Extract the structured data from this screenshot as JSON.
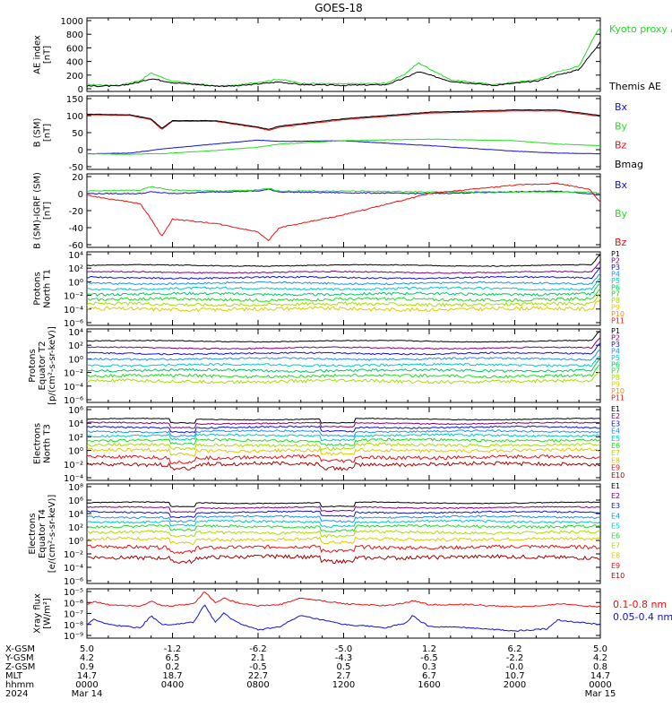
{
  "title": "GOES-18",
  "colors": {
    "black": "#000000",
    "green": "#22dd22",
    "blue": "#1010dd",
    "red": "#ee1010",
    "darkred": "#aa0000"
  },
  "chart_data": [
    {
      "type": "line",
      "panel": "AE index",
      "ylabel": [
        "AE index",
        "[nT]"
      ],
      "ytick_labels": [
        "1000",
        "800",
        "600",
        "400",
        "200",
        "0"
      ],
      "ylim": [
        0,
        1000
      ],
      "x_hours": [
        0,
        1.5,
        2.5,
        3.0,
        4.0,
        6.0,
        7.0,
        9.0,
        10.0,
        12.0,
        14.0,
        14.8,
        15.5,
        17.0,
        19.0,
        21.0,
        22.0,
        23.0,
        23.8,
        24.0
      ],
      "series": [
        {
          "name": "Kyoto proxy AE",
          "color": "#22dd22",
          "values": [
            60,
            50,
            120,
            230,
            110,
            40,
            50,
            140,
            80,
            70,
            80,
            200,
            380,
            130,
            60,
            130,
            250,
            330,
            820,
            900
          ]
        },
        {
          "name": "Themis AE",
          "color": "#000000",
          "values": [
            40,
            40,
            100,
            150,
            90,
            40,
            40,
            100,
            60,
            50,
            60,
            150,
            250,
            110,
            50,
            110,
            200,
            280,
            600,
            700
          ]
        }
      ]
    },
    {
      "type": "line",
      "panel": "B (SM)",
      "ylabel": [
        "B (SM)",
        "[nT]"
      ],
      "ytick_labels": [
        "150",
        "100",
        "50",
        "0",
        "-50"
      ],
      "ylim": [
        -60,
        150
      ],
      "x_hours": [
        0,
        2.0,
        3.0,
        3.5,
        4.0,
        6.0,
        8.0,
        8.5,
        9.0,
        12.0,
        16.0,
        20.0,
        22.0,
        24.0
      ],
      "series": [
        {
          "name": "Bx",
          "color": "#1010dd",
          "values": [
            -20,
            -18,
            -10,
            -5,
            -2,
            10,
            22,
            20,
            18,
            20,
            5,
            -12,
            -18,
            -20
          ]
        },
        {
          "name": "By",
          "color": "#22dd22",
          "values": [
            -20,
            -22,
            -20,
            -20,
            -18,
            -10,
            0,
            5,
            10,
            20,
            25,
            20,
            10,
            5
          ]
        },
        {
          "name": "Bz",
          "color": "#ee1010",
          "values": [
            100,
            98,
            85,
            55,
            80,
            80,
            60,
            52,
            62,
            85,
            105,
            112,
            112,
            95
          ]
        },
        {
          "name": "Bmag",
          "color": "#000000",
          "values": [
            102,
            100,
            88,
            58,
            82,
            82,
            62,
            55,
            65,
            88,
            108,
            115,
            115,
            98
          ]
        }
      ]
    },
    {
      "type": "line",
      "panel": "B (SM)-IGRF (SM)",
      "ylabel": [
        "B (SM)-IGRF (SM)",
        "[nT]"
      ],
      "ytick_labels": [
        "20",
        "0",
        "-20",
        "-40",
        "-60"
      ],
      "ylim": [
        -60,
        20
      ],
      "x_hours": [
        0,
        2.5,
        3.0,
        3.5,
        4.0,
        6.0,
        8.0,
        8.5,
        9.0,
        12.0,
        16.0,
        20.0,
        22.0,
        23.5,
        24.0
      ],
      "series": [
        {
          "name": "Bx",
          "color": "#1010dd",
          "values": [
            0,
            0,
            2,
            1,
            0,
            2,
            3,
            5,
            2,
            1,
            0,
            2,
            3,
            0,
            -2
          ]
        },
        {
          "name": "By",
          "color": "#22dd22",
          "values": [
            3,
            4,
            8,
            6,
            4,
            3,
            4,
            6,
            3,
            3,
            2,
            2,
            2,
            2,
            0
          ]
        },
        {
          "name": "Bz",
          "color": "#ee1010",
          "values": [
            -2,
            -12,
            -30,
            -50,
            -30,
            -35,
            -45,
            -55,
            -40,
            -25,
            0,
            10,
            12,
            5,
            -10
          ]
        }
      ]
    },
    {
      "type": "line",
      "panel": "Protons North T1",
      "ylabel": [
        "Protons",
        "North T1"
      ],
      "ytick_labels": [
        "10⁴",
        "10²",
        "10⁰",
        "10⁻²",
        "10⁻⁴",
        "10⁻⁶"
      ],
      "ylim_log10": [
        -6,
        4
      ],
      "series": [
        {
          "name": "P1",
          "color": "#000000",
          "log10": 2.4
        },
        {
          "name": "P2",
          "color": "#800080",
          "log10": 1.4
        },
        {
          "name": "P3",
          "color": "#1010dd",
          "log10": 0.6
        },
        {
          "name": "P4",
          "color": "#1e8fff",
          "log10": -0.2
        },
        {
          "name": "P5",
          "color": "#00c8c8",
          "log10": -1.0
        },
        {
          "name": "P6",
          "color": "#00c864",
          "log10": -1.8
        },
        {
          "name": "P7",
          "color": "#22dd22",
          "log10": -2.6
        },
        {
          "name": "P8",
          "color": "#aadd00",
          "log10": -3.3
        },
        {
          "name": "P9",
          "color": "#ddcc00",
          "log10": -4.0
        },
        {
          "name": "P10",
          "color": "#ff8800",
          "log10": null
        },
        {
          "name": "P11",
          "color": "#ee1010",
          "log10": null
        }
      ]
    },
    {
      "type": "line",
      "panel": "Protons Equator T2",
      "ylabel": [
        "Protons",
        "Equator T2",
        "[p/(cm²-s-sr-keV)]"
      ],
      "ytick_labels": [
        "10⁴",
        "10²",
        "10⁰",
        "10⁻²",
        "10⁻⁴",
        "10⁻⁶"
      ],
      "ylim_log10": [
        -6,
        4
      ],
      "series": [
        {
          "name": "P1",
          "color": "#000000",
          "log10": 2.6
        },
        {
          "name": "P2",
          "color": "#800080",
          "log10": 1.6
        },
        {
          "name": "P3",
          "color": "#1010dd",
          "log10": 0.8
        },
        {
          "name": "P4",
          "color": "#1e8fff",
          "log10": 0.0
        },
        {
          "name": "P5",
          "color": "#00c8c8",
          "log10": -0.9
        },
        {
          "name": "P6",
          "color": "#00c864",
          "log10": -1.7
        },
        {
          "name": "P7",
          "color": "#22dd22",
          "log10": -2.5
        },
        {
          "name": "P8",
          "color": "#aadd00",
          "log10": -3.3
        },
        {
          "name": "P9",
          "color": "#ddcc00",
          "log10": null
        },
        {
          "name": "P10",
          "color": "#ff8800",
          "log10": null
        },
        {
          "name": "P11",
          "color": "#ee1010",
          "log10": null
        }
      ]
    },
    {
      "type": "line",
      "panel": "Electrons North T3",
      "ylabel": [
        "Electrons",
        "North T3"
      ],
      "ytick_labels": [
        "10⁶",
        "10⁴",
        "10²",
        "10⁰",
        "10⁻²",
        "10⁻⁴"
      ],
      "ylim_log10": [
        -4,
        6
      ],
      "series": [
        {
          "name": "E1",
          "color": "#000000",
          "log10": 4.6
        },
        {
          "name": "E2",
          "color": "#800080",
          "log10": 4.0
        },
        {
          "name": "E3",
          "color": "#1010dd",
          "log10": 3.4
        },
        {
          "name": "E4",
          "color": "#1e8fff",
          "log10": 2.8
        },
        {
          "name": "E5",
          "color": "#00c8c8",
          "log10": 2.2
        },
        {
          "name": "E6",
          "color": "#22dd22",
          "log10": 1.5
        },
        {
          "name": "E7",
          "color": "#aadd00",
          "log10": 0.8
        },
        {
          "name": "E8",
          "color": "#ddcc00",
          "log10": 0.0
        },
        {
          "name": "E9",
          "color": "#ee1010",
          "log10": -1.0
        },
        {
          "name": "E10",
          "color": "#aa0000",
          "log10": -2.0
        }
      ]
    },
    {
      "type": "line",
      "panel": "Electrons Equator T4",
      "ylabel": [
        "Electrons",
        "Equator T4",
        "[e/(cm²-s-sr-keV)]"
      ],
      "ytick_labels": [
        "10⁸",
        "10⁶",
        "10⁴",
        "10²",
        "10⁰",
        "10⁻²",
        "10⁻⁴",
        "10⁻⁶"
      ],
      "ylim_log10": [
        -6,
        8
      ],
      "series": [
        {
          "name": "E1",
          "color": "#000000",
          "log10": 5.6
        },
        {
          "name": "E2",
          "color": "#800080",
          "log10": 4.9
        },
        {
          "name": "E3",
          "color": "#1010dd",
          "log10": 4.2
        },
        {
          "name": "E4",
          "color": "#1e8fff",
          "log10": 3.5
        },
        {
          "name": "E5",
          "color": "#00c8c8",
          "log10": 2.8
        },
        {
          "name": "E6",
          "color": "#22dd22",
          "log10": 2.1
        },
        {
          "name": "E7",
          "color": "#aadd00",
          "log10": 1.2
        },
        {
          "name": "E8",
          "color": "#ddcc00",
          "log10": 0.2
        },
        {
          "name": "E9",
          "color": "#ee1010",
          "log10": -1.0
        },
        {
          "name": "E10",
          "color": "#aa0000",
          "log10": -2.5
        }
      ]
    },
    {
      "type": "line",
      "panel": "Xray flux",
      "ylabel": [
        "Xray flux",
        "[W/m²]"
      ],
      "ytick_labels": [
        "10⁻⁵",
        "10⁻⁶",
        "10⁻⁷",
        "10⁻⁸",
        "10⁻⁹"
      ],
      "ylim_log10": [
        -9,
        -5
      ],
      "x_hours": [
        0,
        0.3,
        1.0,
        2.5,
        3.0,
        3.5,
        4.0,
        5.0,
        5.5,
        6.0,
        6.4,
        7.0,
        8.0,
        9.0,
        10.0,
        12.0,
        14.0,
        15.0,
        15.2,
        16.0,
        18.0,
        20.0,
        21.5,
        22.0,
        24.0
      ],
      "series": [
        {
          "name": "0.1-0.8 nm",
          "color": "#ee1010",
          "values": [
            -6.2,
            -5.9,
            -6.2,
            -6.3,
            -5.9,
            -6.3,
            -6.3,
            -6.1,
            -5.0,
            -6.0,
            -5.6,
            -6.0,
            -6.3,
            -6.2,
            -5.6,
            -6.1,
            -6.3,
            -6.0,
            -5.8,
            -6.2,
            -6.2,
            -6.4,
            -6.3,
            -6.1,
            -6.4
          ]
        },
        {
          "name": "0.05-0.4 nm",
          "color": "#1010dd",
          "values": [
            -8.0,
            -7.5,
            -8.0,
            -8.3,
            -7.2,
            -8.0,
            -8.0,
            -7.8,
            -6.2,
            -7.8,
            -7.0,
            -7.8,
            -8.5,
            -8.2,
            -7.2,
            -8.0,
            -8.3,
            -7.8,
            -7.2,
            -8.2,
            -8.3,
            -8.6,
            -8.4,
            -7.6,
            -8.0
          ]
        }
      ]
    }
  ],
  "orbit": {
    "row_labels": [
      "X-GSM",
      "Y-GSM",
      "Z-GSM",
      "MLT",
      "hhmm",
      "2024"
    ],
    "columns": [
      [
        "5.0",
        "4.2",
        "0.9",
        "14.7",
        "0000",
        "Mar 14"
      ],
      [
        "-1.2",
        "6.5",
        "0.2",
        "18.7",
        "0400",
        ""
      ],
      [
        "-6.2",
        "2.1",
        "-0.5",
        "22.7",
        "0800",
        ""
      ],
      [
        "-5.0",
        "-4.3",
        "0.5",
        "2.7",
        "1200",
        ""
      ],
      [
        "1.2",
        "-6.5",
        "0.3",
        "6.7",
        "1600",
        ""
      ],
      [
        "6.2",
        "-2.2",
        "-0.0",
        "10.7",
        "2000",
        ""
      ],
      [
        "5.0",
        "4.2",
        "0.8",
        "14.7",
        "0000",
        "Mar 15"
      ]
    ]
  }
}
